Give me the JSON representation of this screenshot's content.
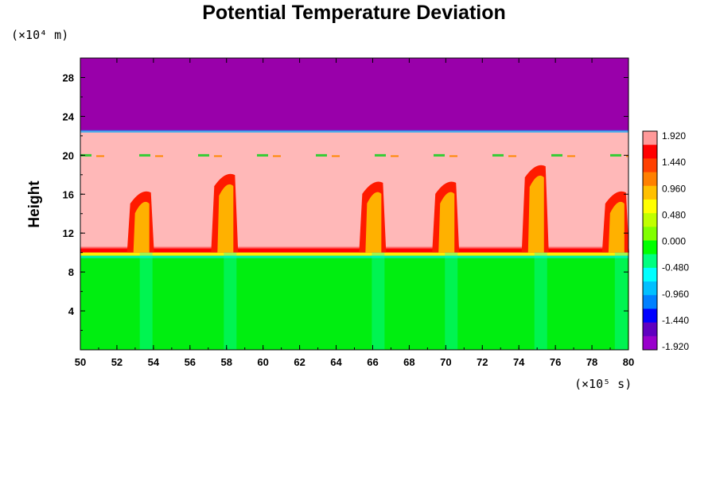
{
  "chart_data": {
    "type": "heatmap",
    "title": "Potential Temperature Deviation",
    "ylabel": "Height",
    "y_unit": "(×10⁴ m)",
    "x_unit": "(×10⁵ s)",
    "xlim": [
      50,
      80
    ],
    "ylim": [
      0,
      30
    ],
    "x_ticks": [
      "50",
      "52",
      "54",
      "56",
      "58",
      "60",
      "62",
      "64",
      "66",
      "68",
      "70",
      "72",
      "74",
      "76",
      "78",
      "80"
    ],
    "y_ticks": [
      "4",
      "8",
      "12",
      "16",
      "20",
      "24",
      "28"
    ],
    "tropopause_height": 10,
    "upper_boundary_height": 22.5,
    "upper_layer_height": 20,
    "plumes": [
      {
        "x": 53.6,
        "top": 16.5
      },
      {
        "x": 58.2,
        "top": 18.3
      },
      {
        "x": 66.3,
        "top": 17.5
      },
      {
        "x": 70.3,
        "top": 17.5
      },
      {
        "x": 75.2,
        "top": 19.2
      },
      {
        "x": 79.6,
        "top": 16.5
      }
    ],
    "colorbar": {
      "labels": [
        "1.920",
        "1.440",
        "0.960",
        "0.480",
        "0.000",
        "-0.480",
        "-0.960",
        "-1.440",
        "-1.920"
      ],
      "colors": [
        "#ff9999",
        "#ff0000",
        "#ff4000",
        "#ff8000",
        "#ffc000",
        "#ffff00",
        "#c0ff00",
        "#80ff00",
        "#00ff00",
        "#00ff80",
        "#00ffff",
        "#00c0ff",
        "#0080ff",
        "#0000ff",
        "#6000c0",
        "#9900cc"
      ]
    }
  }
}
